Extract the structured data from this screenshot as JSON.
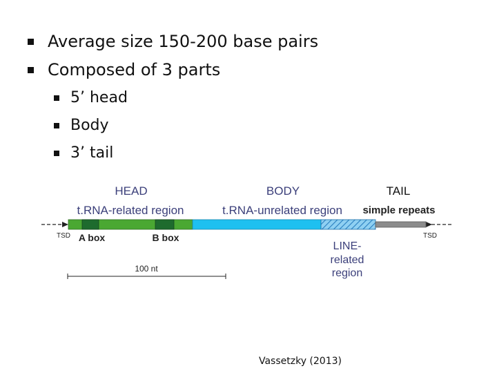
{
  "bullets": {
    "level1": [
      "Average size 150-200 base pairs",
      "Composed of 3 parts"
    ],
    "level2": [
      "5’ head",
      "Body",
      "3’ tail"
    ]
  },
  "diagram": {
    "headers": {
      "head": "HEAD",
      "body": "BODY",
      "tail": "TAIL"
    },
    "regions": {
      "trna_related": "t.RNA-related region",
      "trna_unrelated": "t.RNA-unrelated region",
      "simple_repeats": "simple repeats"
    },
    "tsd_left": "TSD",
    "tsd_right": "TSD",
    "a_box": "A box",
    "b_box": "B box",
    "line_related": [
      "LINE-",
      "related",
      "region"
    ],
    "scale": "100 nt",
    "colors": {
      "head_green": "#4aa832",
      "box_dark_green": "#1e6b2e",
      "body_cyan": "#1ec0f0",
      "line_hatch": "#3a9fd8",
      "tail_gray": "#8c8c8c",
      "header_text": "#3b3f7a"
    }
  },
  "citation": "Vassetzky (2013)"
}
